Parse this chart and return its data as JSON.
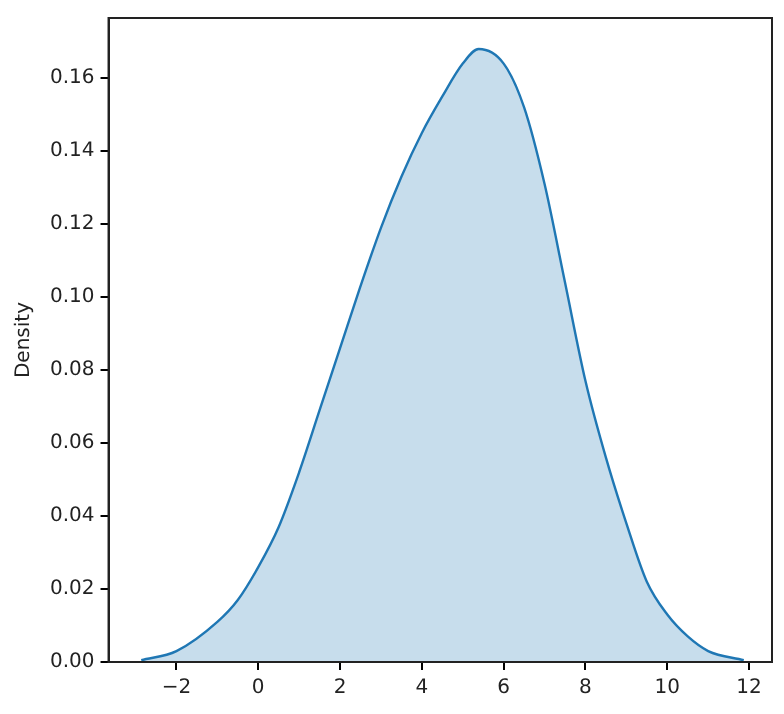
{
  "chart_data": {
    "type": "area",
    "ylabel": "Density",
    "color": "#1f77b4",
    "x": [
      -2.86,
      -2,
      -1,
      -0.5,
      0,
      0.5,
      1,
      1.5,
      2,
      2.5,
      3,
      3.5,
      4,
      4.5,
      5,
      5.39,
      6,
      6.5,
      7,
      7.5,
      8,
      8.5,
      9,
      9.5,
      10,
      10.5,
      11,
      11.87
    ],
    "values": [
      0.0005,
      0.003,
      0.011,
      0.017,
      0.026,
      0.037,
      0.052,
      0.069,
      0.086,
      0.103,
      0.119,
      0.133,
      0.145,
      0.155,
      0.164,
      0.168,
      0.164,
      0.152,
      0.131,
      0.104,
      0.077,
      0.056,
      0.038,
      0.022,
      0.013,
      0.007,
      0.003,
      0.0005
    ],
    "xlim": [
      -3.66,
      12.56
    ],
    "ylim": [
      0,
      0.1765
    ],
    "xticks": [
      {
        "value": -2,
        "label": "−2"
      },
      0,
      2,
      4,
      6,
      8,
      10,
      12
    ],
    "yticks": [
      {
        "value": 0,
        "label": "0.00"
      },
      {
        "value": 0.02,
        "label": "0.02"
      },
      {
        "value": 0.04,
        "label": "0.04"
      },
      {
        "value": 0.06,
        "label": "0.06"
      },
      {
        "value": 0.08,
        "label": "0.08"
      },
      {
        "value": 0.1,
        "label": "0.10"
      },
      {
        "value": 0.12,
        "label": "0.12"
      },
      {
        "value": 0.14,
        "label": "0.14"
      },
      {
        "value": 0.16,
        "label": "0.16"
      }
    ]
  }
}
